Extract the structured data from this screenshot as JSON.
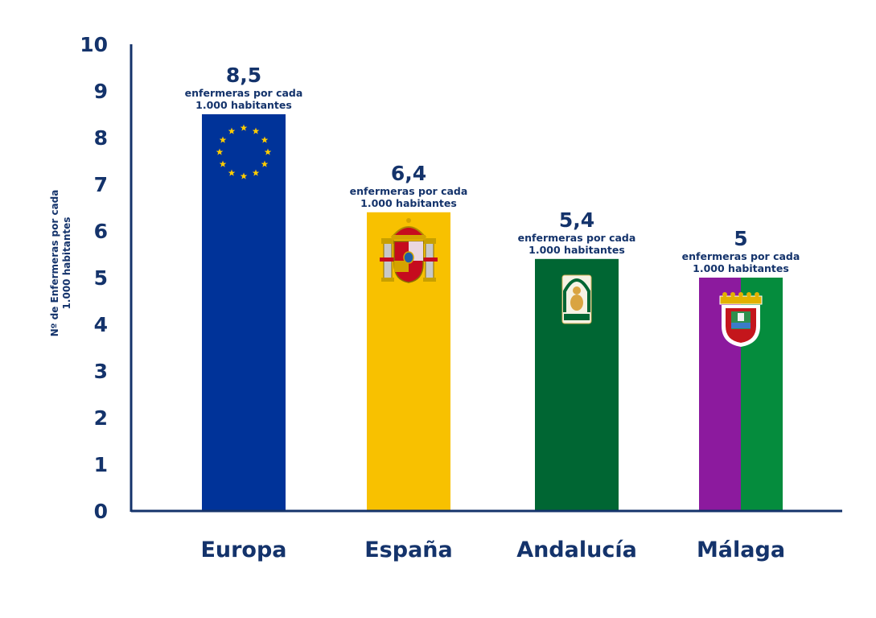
{
  "chart_data": {
    "type": "bar",
    "categories": [
      "Europa",
      "España",
      "Andalucía",
      "Málaga"
    ],
    "values": [
      8.5,
      6.4,
      5.4,
      5
    ],
    "value_labels": [
      "8,5",
      "6,4",
      "5,4",
      "5"
    ],
    "value_unit_lines": [
      "enfermeras por cada",
      "1.000 habitantes"
    ],
    "title": "",
    "xlabel": "",
    "ylabel_lines": [
      "Nº de Enfermeras por cada",
      "1.000 habitantes"
    ],
    "ylim": [
      0,
      10
    ],
    "yticks": [
      0,
      1,
      2,
      3,
      4,
      5,
      6,
      7,
      8,
      9,
      10
    ],
    "grid": false,
    "legend": "none",
    "bar_colors": [
      "#003399",
      "#f8c100",
      "#006633",
      [
        "#8c1a9e",
        "#058c3d"
      ]
    ],
    "bar_decorations": [
      "eu-stars-icon",
      "spain-coat-of-arms-icon",
      "andalucia-coat-of-arms-icon",
      "malaga-coat-of-arms-icon"
    ],
    "text_color": "#14336b",
    "axis_color": "#14336b"
  }
}
